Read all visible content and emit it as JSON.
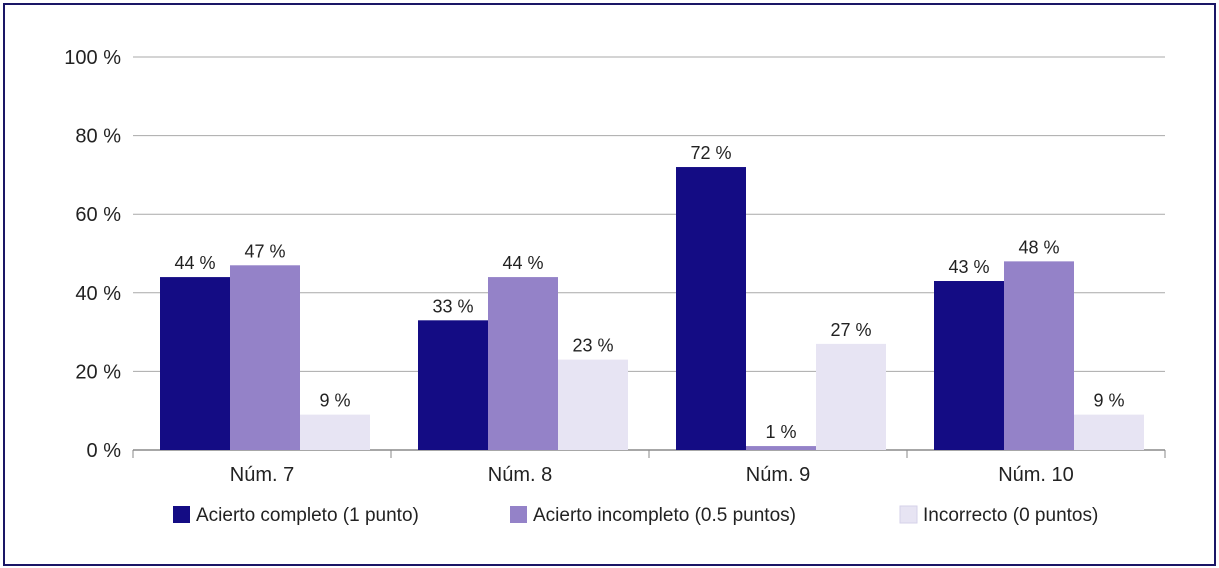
{
  "chart_data": {
    "type": "bar",
    "categories": [
      "Núm. 7",
      "Núm. 8",
      "Núm. 9",
      "Núm. 10"
    ],
    "series": [
      {
        "name": "Acierto completo (1 punto)",
        "values": [
          44,
          33,
          72,
          43
        ],
        "labels": [
          "44 %",
          "33 %",
          "72 %",
          "43 %"
        ],
        "color": "#140c84"
      },
      {
        "name": "Acierto incompleto (0.5 puntos)",
        "values": [
          47,
          44,
          1,
          48
        ],
        "labels": [
          "47 %",
          "44 %",
          "1 %",
          "48 %"
        ],
        "color": "#9482c8"
      },
      {
        "name": "Incorrecto (0 puntos)",
        "values": [
          9,
          23,
          27,
          9
        ],
        "labels": [
          "9 %",
          "23 %",
          "27 %",
          "9 %"
        ],
        "color": "#e7e4f3"
      }
    ],
    "yticks": [
      0,
      20,
      40,
      60,
      80,
      100
    ],
    "ytick_labels": [
      "0 %",
      "20 %",
      "40 %",
      "60 %",
      "80 %",
      "100 %"
    ],
    "ylim": [
      0,
      100
    ],
    "grid": true,
    "legend_position": "bottom",
    "title": "",
    "xlabel": "",
    "ylabel": ""
  }
}
